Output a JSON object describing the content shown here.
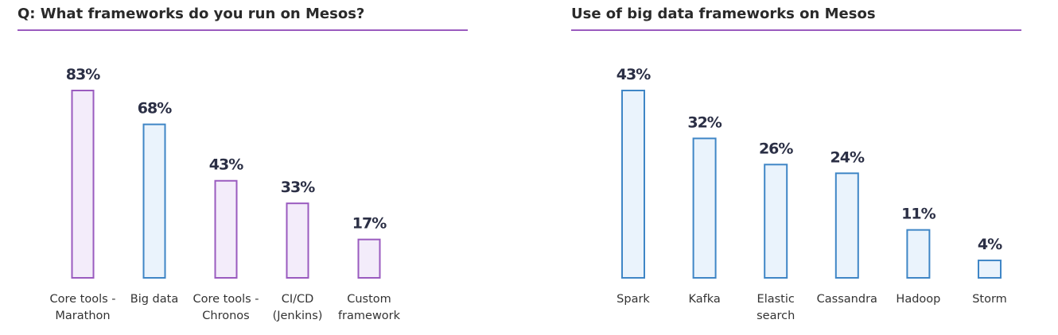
{
  "colors": {
    "purple_stroke": "#9a5bbf",
    "purple_fill": "#f3ecfa",
    "blue_stroke": "#3f86c6",
    "blue_fill": "#eaf3fc",
    "rule": "#9a5bbf"
  },
  "chart_data": [
    {
      "type": "bar",
      "title": "Q: What frameworks do you run on Mesos?",
      "categories": [
        [
          "Core tools -",
          "Marathon"
        ],
        [
          "Big data"
        ],
        [
          "Core tools -",
          "Chronos"
        ],
        [
          "CI/CD",
          "(Jenkins)"
        ],
        [
          "Custom",
          "framework"
        ]
      ],
      "values": [
        83,
        68,
        43,
        33,
        17
      ],
      "value_labels": [
        "83%",
        "68%",
        "43%",
        "33%",
        "17%"
      ],
      "bar_colors": [
        "purple",
        "blue",
        "purple",
        "purple",
        "purple"
      ],
      "ylim": [
        0,
        100
      ],
      "grid": false,
      "legend": "none"
    },
    {
      "type": "bar",
      "title": "Use of big data frameworks on Mesos",
      "categories": [
        [
          "Spark"
        ],
        [
          "Kafka"
        ],
        [
          "Elastic",
          "search"
        ],
        [
          "Cassandra"
        ],
        [
          "Hadoop"
        ],
        [
          "Storm"
        ]
      ],
      "values": [
        43,
        32,
        26,
        24,
        11,
        4
      ],
      "value_labels": [
        "43%",
        "32%",
        "26%",
        "24%",
        "11%",
        "4%"
      ],
      "bar_colors": [
        "blue",
        "blue",
        "blue",
        "blue",
        "blue",
        "blue"
      ],
      "ylim": [
        0,
        51.6
      ],
      "grid": false,
      "legend": "none"
    }
  ]
}
